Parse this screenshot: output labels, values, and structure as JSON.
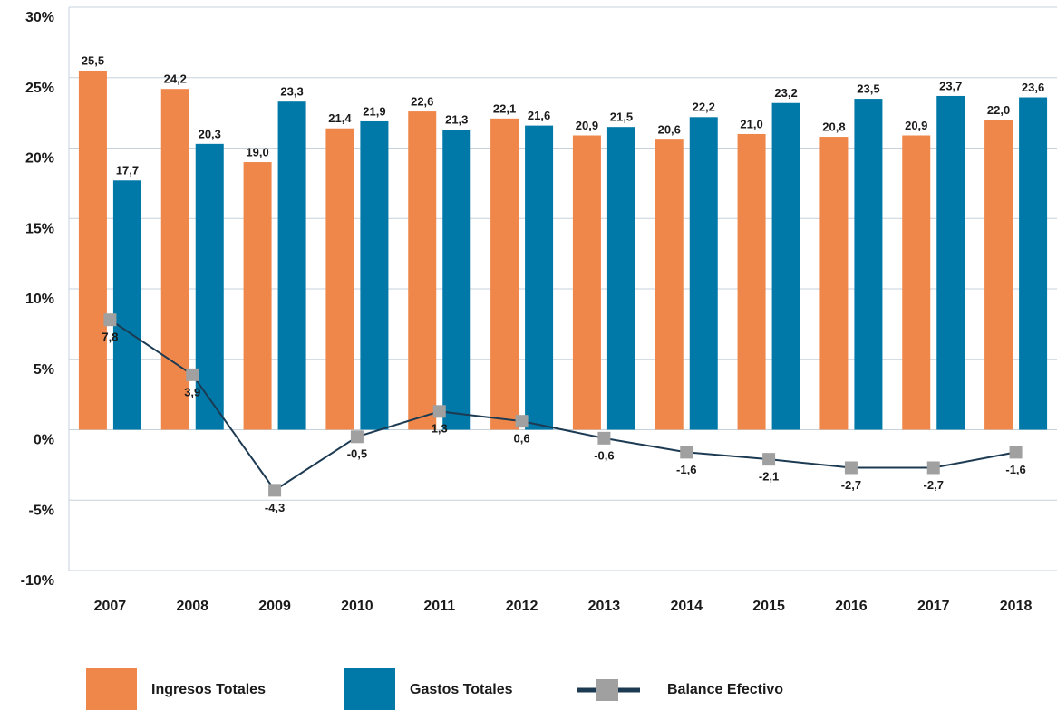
{
  "chart_data": {
    "type": "bar",
    "categories": [
      "2007",
      "2008",
      "2009",
      "2010",
      "2011",
      "2012",
      "2013",
      "2014",
      "2015",
      "2016",
      "2017",
      "2018"
    ],
    "series": [
      {
        "name": "Ingresos Totales",
        "color": "#f0874a",
        "type": "bar",
        "values": [
          25.5,
          24.2,
          19.0,
          21.4,
          22.6,
          22.1,
          20.9,
          20.6,
          21.0,
          20.8,
          20.9,
          22.0
        ],
        "value_labels": [
          "25,5",
          "24,2",
          "19,0",
          "21,4",
          "22,6",
          "22,1",
          "20,9",
          "20,6",
          "21,0",
          "20,8",
          "20,9",
          "22,0"
        ]
      },
      {
        "name": "Gastos Totales",
        "color": "#0079a8",
        "type": "bar",
        "values": [
          17.7,
          20.3,
          23.3,
          21.9,
          21.3,
          21.6,
          21.5,
          22.2,
          23.2,
          23.5,
          23.7,
          23.6
        ],
        "value_labels": [
          "17,7",
          "20,3",
          "23,3",
          "21,9",
          "21,3",
          "21,6",
          "21,5",
          "22,2",
          "23,2",
          "23,5",
          "23,7",
          "23,6"
        ]
      },
      {
        "name": "Balance Efectivo",
        "color": "#1c3a52",
        "marker_color": "#a0a0a0",
        "type": "line",
        "values": [
          7.8,
          3.9,
          -4.3,
          -0.5,
          1.3,
          0.6,
          -0.6,
          -1.6,
          -2.1,
          -2.7,
          -2.7,
          -1.6
        ],
        "value_labels": [
          "7,8",
          "3,9",
          "-4,3",
          "-0,5",
          "1,3",
          "0,6",
          "-0,6",
          "-1,6",
          "-2,1",
          "-2,7",
          "-2,7",
          "-1,6"
        ]
      }
    ],
    "ylim": [
      -10,
      30
    ],
    "yticks": [
      {
        "value": -10,
        "label": "-10%"
      },
      {
        "value": -5,
        "label": "-5%"
      },
      {
        "value": 0,
        "label": "0%"
      },
      {
        "value": 5,
        "label": "5%"
      },
      {
        "value": 10,
        "label": "10%"
      },
      {
        "value": 15,
        "label": "15%"
      },
      {
        "value": 20,
        "label": "20%"
      },
      {
        "value": 25,
        "label": "25%"
      },
      {
        "value": 30,
        "label": "30%"
      }
    ],
    "grid": true
  }
}
